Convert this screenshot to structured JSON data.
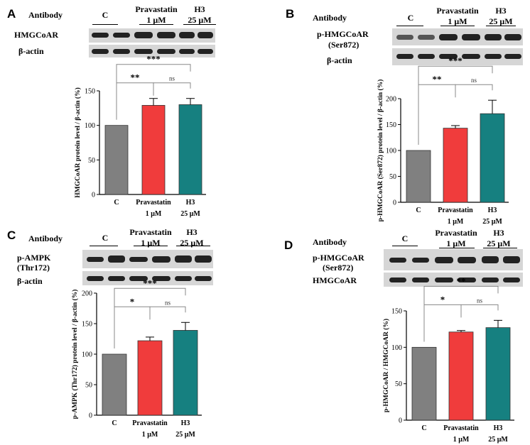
{
  "panels": [
    {
      "letter": "A",
      "antibody_header": "Antibody",
      "groups": [
        {
          "label": "C",
          "sub": ""
        },
        {
          "label": "Pravastatin",
          "sub": "1 μM"
        },
        {
          "label": "H3",
          "sub": "25 μM"
        }
      ],
      "blots": [
        {
          "name": "HMGCoAR",
          "name2": ""
        },
        {
          "name": "β-actin",
          "name2": ""
        }
      ]
    },
    {
      "letter": "B",
      "antibody_header": "Antibody",
      "groups": [
        {
          "label": "C",
          "sub": ""
        },
        {
          "label": "Pravastatin",
          "sub": "1 μM"
        },
        {
          "label": "H3",
          "sub": "25 μM"
        }
      ],
      "blots": [
        {
          "name": "p-HMGCoAR",
          "name2": "(Ser872)"
        },
        {
          "name": "β-actin",
          "name2": ""
        }
      ]
    },
    {
      "letter": "C",
      "antibody_header": "Antibody",
      "groups": [
        {
          "label": "C",
          "sub": ""
        },
        {
          "label": "Pravastatin",
          "sub": "1 μM"
        },
        {
          "label": "H3",
          "sub": "25 μM"
        }
      ],
      "blots": [
        {
          "name": "p-AMPK",
          "name2": "(Thr172)"
        },
        {
          "name": "β-actin",
          "name2": ""
        }
      ]
    },
    {
      "letter": "D",
      "antibody_header": "Antibody",
      "groups": [
        {
          "label": "C",
          "sub": ""
        },
        {
          "label": "Pravastatin",
          "sub": "1 μM"
        },
        {
          "label": "H3",
          "sub": "25 μM"
        }
      ],
      "blots": [
        {
          "name": "p-HMGCoAR",
          "name2": "(Ser872)"
        },
        {
          "name": "HMGCoAR",
          "name2": ""
        }
      ]
    }
  ],
  "chart_data": [
    {
      "type": "bar",
      "panel": "A",
      "categories": [
        "C",
        "Pravastatin",
        "H3"
      ],
      "category_sublabels": [
        "",
        "1 μM",
        "25 μM"
      ],
      "values": [
        100,
        129,
        130
      ],
      "errors": [
        0,
        10,
        9
      ],
      "colors": [
        "#808080",
        "#f03c3c",
        "#168080"
      ],
      "ylabel": "HMGCoAR protein level / β-actin (%)",
      "ylim": [
        0,
        150
      ],
      "yticks": [
        0,
        50,
        100,
        150
      ],
      "significance": [
        {
          "from": 0,
          "to": 1,
          "label": "**"
        },
        {
          "from": 1,
          "to": 2,
          "label": "ns"
        },
        {
          "from": 0,
          "to": 2,
          "label": "***"
        }
      ]
    },
    {
      "type": "bar",
      "panel": "B",
      "categories": [
        "C",
        "Pravastatin",
        "H3"
      ],
      "category_sublabels": [
        "",
        "1 μM",
        "25 μM"
      ],
      "values": [
        100,
        143,
        171
      ],
      "errors": [
        0,
        5,
        26
      ],
      "colors": [
        "#808080",
        "#f03c3c",
        "#168080"
      ],
      "ylabel": "p-HMGCoAR (Ser872) protein level / β-actin (%)",
      "ylim": [
        0,
        200
      ],
      "yticks": [
        0,
        50,
        100,
        150,
        200
      ],
      "significance": [
        {
          "from": 0,
          "to": 1,
          "label": "**"
        },
        {
          "from": 1,
          "to": 2,
          "label": "ns"
        },
        {
          "from": 0,
          "to": 2,
          "label": "***"
        }
      ]
    },
    {
      "type": "bar",
      "panel": "C",
      "categories": [
        "C",
        "Pravastatin",
        "H3"
      ],
      "category_sublabels": [
        "",
        "1 μM",
        "25 μM"
      ],
      "values": [
        100,
        122,
        139
      ],
      "errors": [
        0,
        6,
        13
      ],
      "colors": [
        "#808080",
        "#f03c3c",
        "#168080"
      ],
      "ylabel": "p-AMPK (Thr172) protein level / β-actin (%)",
      "ylim": [
        0,
        200
      ],
      "yticks": [
        0,
        50,
        100,
        150,
        200
      ],
      "significance": [
        {
          "from": 0,
          "to": 1,
          "label": "*"
        },
        {
          "from": 1,
          "to": 2,
          "label": "ns"
        },
        {
          "from": 0,
          "to": 2,
          "label": "***"
        }
      ]
    },
    {
      "type": "bar",
      "panel": "D",
      "categories": [
        "C",
        "Pravastatin",
        "H3"
      ],
      "category_sublabels": [
        "",
        "1 μM",
        "25 μM"
      ],
      "values": [
        100,
        121,
        127
      ],
      "errors": [
        0,
        2,
        10
      ],
      "colors": [
        "#808080",
        "#f03c3c",
        "#168080"
      ],
      "ylabel": "p-HMGCoAR / HMGCoAR (%)",
      "ylim": [
        0,
        150
      ],
      "yticks": [
        0,
        50,
        100,
        150
      ],
      "significance": [
        {
          "from": 0,
          "to": 1,
          "label": "*"
        },
        {
          "from": 1,
          "to": 2,
          "label": "ns"
        },
        {
          "from": 0,
          "to": 2,
          "label": "**"
        }
      ]
    }
  ]
}
